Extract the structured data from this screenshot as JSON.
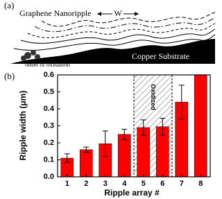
{
  "panel_a": {
    "label": "(a)",
    "title": "Graphene Nanoripple",
    "width_label": "W",
    "substrate": "Copper Substrate",
    "onset": "onset of oxidation"
  },
  "chart_data": {
    "type": "bar",
    "panel_label": "(b)",
    "x_label": "Ripple array #",
    "y_label": "Ripple width (μm)",
    "categories": [
      "1",
      "2",
      "3",
      "4",
      "5",
      "6",
      "7",
      "8"
    ],
    "values": [
      0.11,
      0.16,
      0.195,
      0.25,
      0.29,
      0.295,
      0.44,
      0.6
    ],
    "errors": [
      0.025,
      0.015,
      0.075,
      0.03,
      0.045,
      0.05,
      0.1,
      0
    ],
    "color": "#ff0000",
    "ylim": [
      0,
      0.6
    ],
    "yticks": [
      {
        "value": 0,
        "label": "0.0"
      },
      0.1,
      0.2,
      0.3,
      0.4,
      0.5,
      0.6
    ],
    "shaded_span": [
      "5",
      "6"
    ],
    "shaded_label": "Oxidized"
  }
}
